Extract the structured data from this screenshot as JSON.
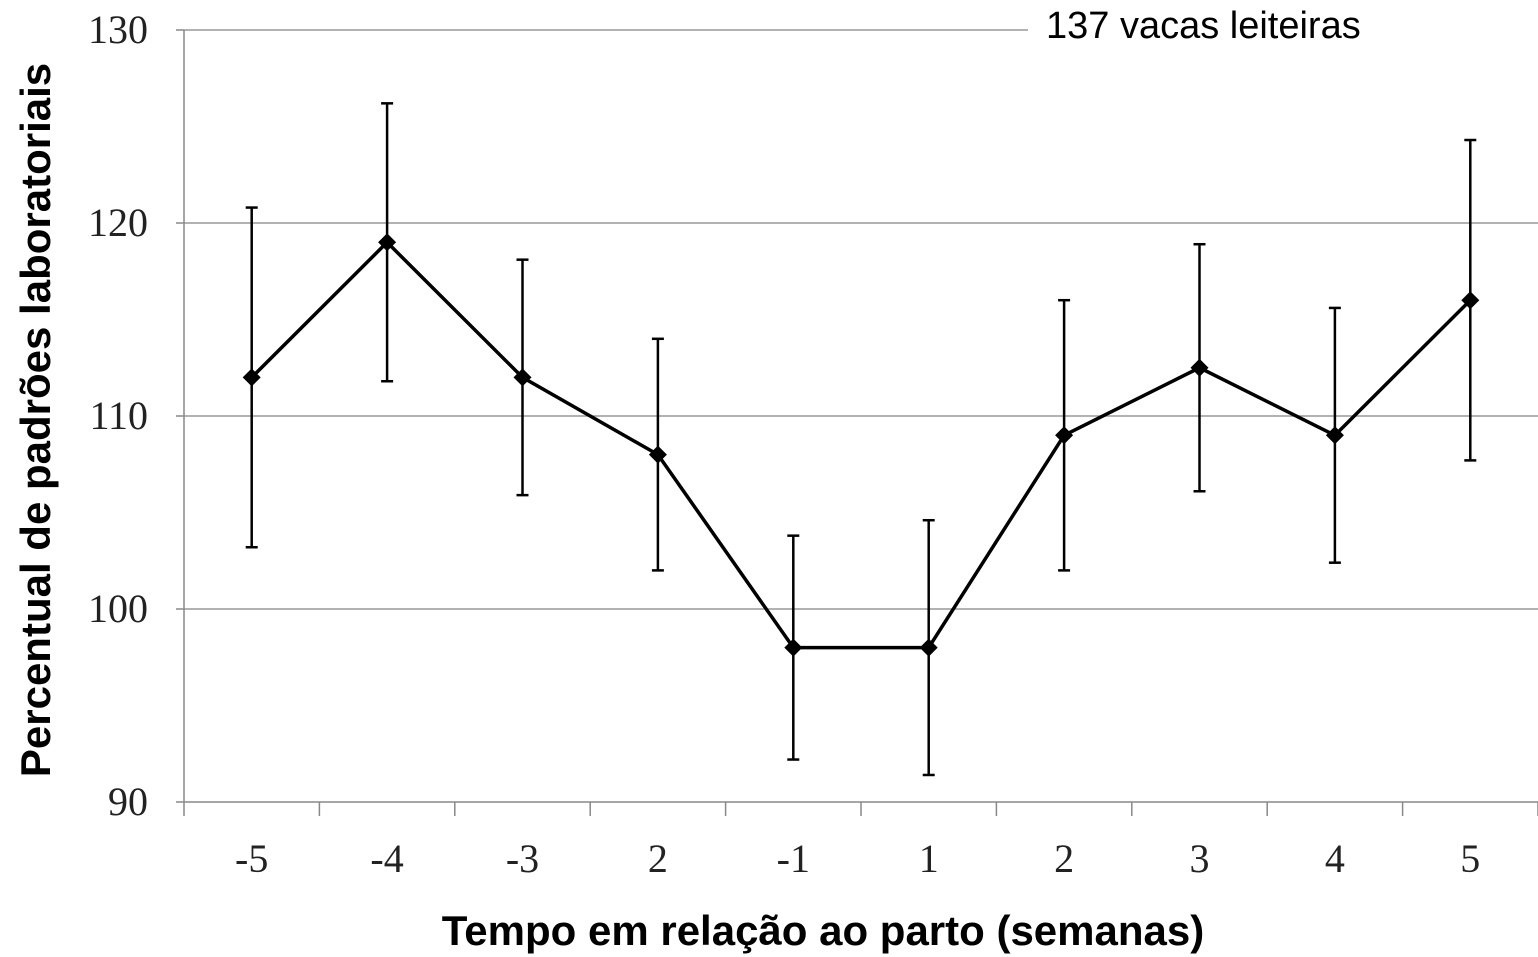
{
  "chart_data": {
    "type": "line",
    "annotation": "137 vacas leiteiras",
    "x_label": "Tempo em relação ao parto (semanas)",
    "y_label": "Percentual de padrões laboratoriais",
    "categories": [
      "-5",
      "-4",
      "-3",
      "2",
      "-1",
      "1",
      "2",
      "3",
      "4",
      "5"
    ],
    "values": [
      112,
      119,
      112,
      108,
      98,
      98,
      109,
      112.5,
      109,
      116
    ],
    "errors": [
      8.8,
      7.2,
      6.1,
      6,
      5.8,
      6.6,
      7,
      6.4,
      6.6,
      8.3
    ],
    "color": "#000000",
    "ylim": [
      90,
      130
    ],
    "yticks": [
      90,
      100,
      110,
      120,
      130
    ],
    "grid": true
  }
}
